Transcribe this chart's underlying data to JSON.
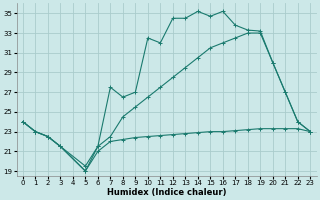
{
  "xlabel": "Humidex (Indice chaleur)",
  "bg_color": "#cce8e8",
  "grid_color": "#aacccc",
  "line_color": "#1a7a6e",
  "xlim": [
    -0.5,
    23.5
  ],
  "ylim": [
    18.5,
    36
  ],
  "xticks": [
    0,
    1,
    2,
    3,
    4,
    5,
    6,
    7,
    8,
    9,
    10,
    11,
    12,
    13,
    14,
    15,
    16,
    17,
    18,
    19,
    20,
    21,
    22,
    23
  ],
  "yticks": [
    19,
    21,
    23,
    25,
    27,
    29,
    31,
    33,
    35
  ],
  "line1_x": [
    0,
    1,
    2,
    3,
    5,
    6,
    7,
    8,
    9,
    10,
    11,
    12,
    13,
    14,
    15,
    16,
    17,
    18,
    19,
    20,
    21,
    22,
    23
  ],
  "line1_y": [
    24,
    23,
    22.5,
    21.5,
    19,
    21.5,
    27.5,
    26.5,
    27,
    32.5,
    32,
    34.5,
    34.5,
    35.2,
    34.7,
    35.2,
    33.8,
    33.3,
    33.2,
    30.0,
    27.0,
    24.0,
    23.0
  ],
  "line2_x": [
    0,
    1,
    2,
    3,
    5,
    6,
    7,
    8,
    9,
    10,
    11,
    12,
    13,
    14,
    15,
    16,
    17,
    18,
    19,
    20,
    21,
    22,
    23
  ],
  "line2_y": [
    24,
    23,
    22.5,
    21.5,
    19.5,
    21.5,
    22.5,
    24.5,
    25.5,
    26.5,
    27.5,
    28.5,
    29.5,
    30.5,
    31.5,
    32.0,
    32.5,
    33.0,
    33.0,
    30.0,
    27.0,
    24.0,
    23.0
  ],
  "line3_x": [
    0,
    1,
    2,
    3,
    5,
    6,
    7,
    8,
    9,
    10,
    11,
    12,
    13,
    14,
    15,
    16,
    17,
    18,
    19,
    20,
    21,
    22,
    23
  ],
  "line3_y": [
    24,
    23,
    22.5,
    21.5,
    19.0,
    21.0,
    22.0,
    22.2,
    22.4,
    22.5,
    22.6,
    22.7,
    22.8,
    22.9,
    23.0,
    23.0,
    23.1,
    23.2,
    23.3,
    23.3,
    23.3,
    23.3,
    23.0
  ]
}
